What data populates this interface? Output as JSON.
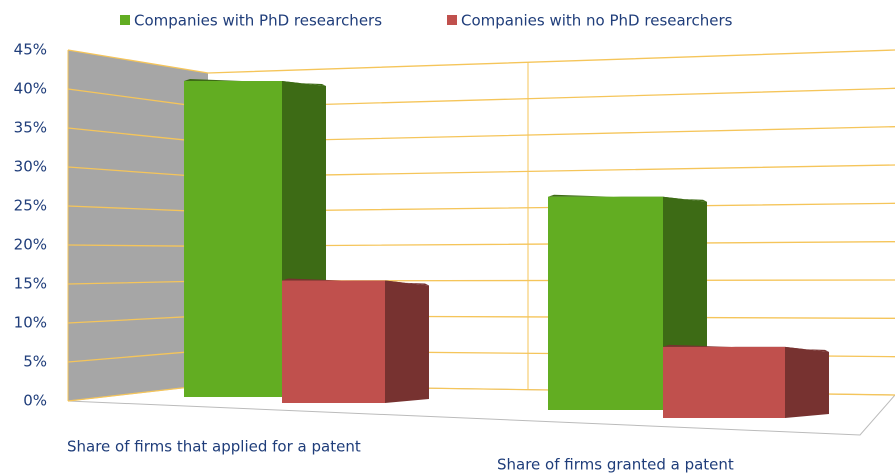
{
  "chart_data": {
    "type": "bar3d",
    "categories": [
      "Share of firms that applied for a patent",
      "Share of firms granted a patent"
    ],
    "series": [
      {
        "name": "Companies with PhD researchers",
        "color": "#62ad22",
        "values": [
          40,
          27
        ]
      },
      {
        "name": "Companies with no PhD researchers",
        "color": "#c0504d",
        "values": [
          15.5,
          9
        ]
      }
    ],
    "ylim": [
      0,
      45
    ],
    "yticks": [
      {
        "value": 0,
        "label": "0%"
      },
      {
        "value": 5,
        "label": "5%"
      },
      {
        "value": 10,
        "label": "10%"
      },
      {
        "value": 15,
        "label": "15%"
      },
      {
        "value": 20,
        "label": "20%"
      },
      {
        "value": 25,
        "label": "25%"
      },
      {
        "value": 30,
        "label": "30%"
      },
      {
        "value": 35,
        "label": "35%"
      },
      {
        "value": 40,
        "label": "40%"
      },
      {
        "value": 45,
        "label": "45%"
      }
    ],
    "grid": true,
    "legend": "top"
  }
}
